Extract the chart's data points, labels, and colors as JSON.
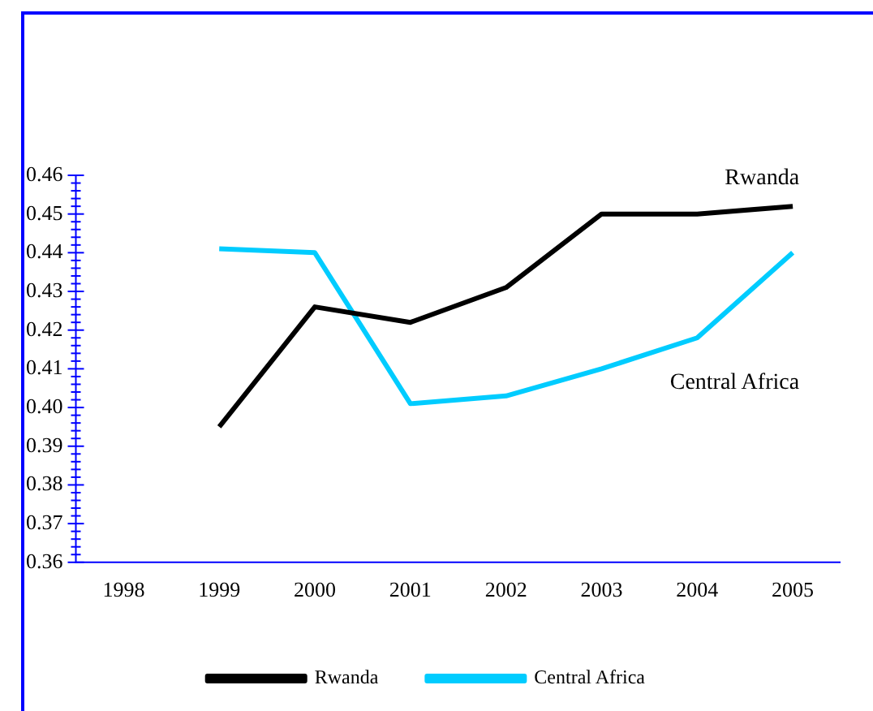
{
  "chart_data": {
    "type": "line",
    "categories": [
      "1998",
      "1999",
      "2000",
      "2001",
      "2002",
      "2003",
      "2004",
      "2005"
    ],
    "series": [
      {
        "name": "Rwanda",
        "color": "#000000",
        "values": [
          null,
          0.395,
          0.426,
          0.422,
          0.431,
          0.45,
          0.45,
          0.452
        ]
      },
      {
        "name": "Central Africa",
        "color": "#00ccff",
        "values": [
          null,
          0.441,
          0.44,
          0.401,
          0.403,
          0.41,
          0.418,
          0.44
        ]
      }
    ],
    "ylim": [
      0.36,
      0.46
    ],
    "yticks": [
      0.36,
      {
        "value": 0.362,
        "label": null
      },
      {
        "value": 0.364,
        "label": null
      },
      {
        "value": 0.366,
        "label": null
      },
      {
        "value": 0.368,
        "label": null
      },
      0.37,
      {
        "value": 0.372,
        "label": null
      },
      {
        "value": 0.374,
        "label": null
      },
      {
        "value": 0.376,
        "label": null
      },
      {
        "value": 0.378,
        "label": null
      },
      0.38,
      {
        "value": 0.382,
        "label": null
      },
      {
        "value": 0.384,
        "label": null
      },
      {
        "value": 0.386,
        "label": null
      },
      {
        "value": 0.388,
        "label": null
      },
      0.39,
      {
        "value": 0.392,
        "label": null
      },
      {
        "value": 0.394,
        "label": null
      },
      {
        "value": 0.396,
        "label": null
      },
      {
        "value": 0.398,
        "label": null
      },
      {
        "value": 0.4,
        "label": "0.40"
      },
      {
        "value": 0.402,
        "label": null
      },
      {
        "value": 0.404,
        "label": null
      },
      {
        "value": 0.406,
        "label": null
      },
      {
        "value": 0.408,
        "label": null
      },
      0.41,
      {
        "value": 0.412,
        "label": null
      },
      {
        "value": 0.414,
        "label": null
      },
      {
        "value": 0.416,
        "label": null
      },
      {
        "value": 0.418,
        "label": null
      },
      0.42,
      {
        "value": 0.422,
        "label": null
      },
      {
        "value": 0.424,
        "label": null
      },
      {
        "value": 0.426,
        "label": null
      },
      {
        "value": 0.428,
        "label": null
      },
      0.43,
      {
        "value": 0.432,
        "label": null
      },
      {
        "value": 0.434,
        "label": null
      },
      {
        "value": 0.436,
        "label": null
      },
      {
        "value": 0.438,
        "label": null
      },
      0.44,
      {
        "value": 0.442,
        "label": null
      },
      {
        "value": 0.444,
        "label": null
      },
      {
        "value": 0.446,
        "label": null
      },
      {
        "value": 0.448,
        "label": null
      },
      0.45,
      {
        "value": 0.452,
        "label": null
      },
      {
        "value": 0.454,
        "label": null
      },
      {
        "value": 0.456,
        "label": null
      },
      {
        "value": 0.458,
        "label": null
      },
      0.46
    ],
    "annotations": [
      "Rwanda",
      "Central Africa"
    ],
    "legend": "bottom",
    "grid": false,
    "marker": "none",
    "line_style": "solid"
  }
}
